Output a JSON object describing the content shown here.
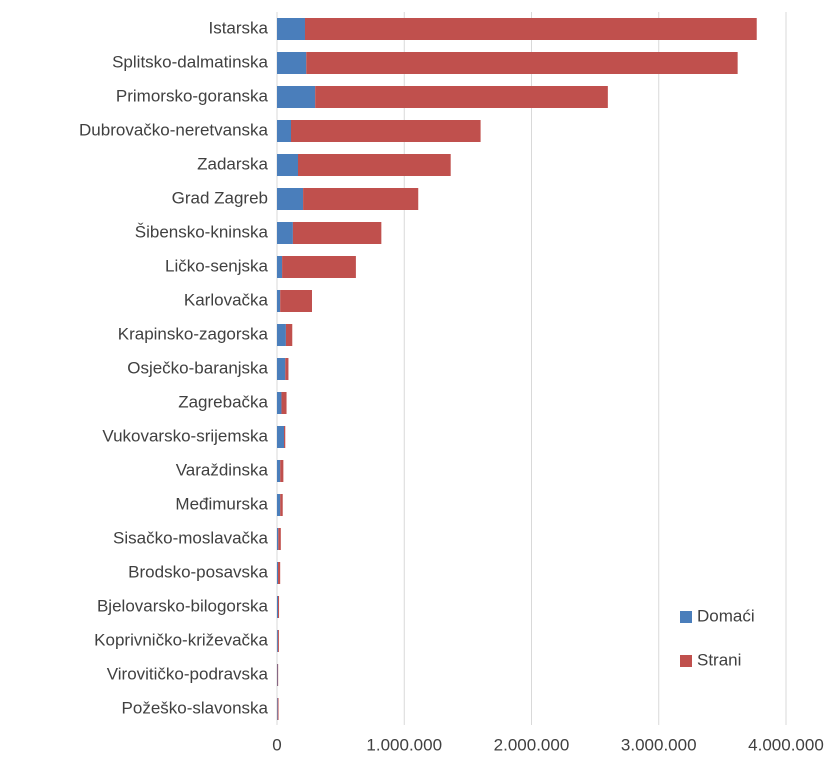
{
  "chart_data": {
    "type": "stacked_barh",
    "categories": [
      "Istarska",
      "Splitsko-dalmatinska",
      "Primorsko-goranska",
      "Dubrovačko-neretvanska",
      "Zadarska",
      "Grad Zagreb",
      "Šibensko-kninska",
      "Ličko-senjska",
      "Karlovačka",
      "Krapinsko-zagorska",
      "Osječko-baranjska",
      "Zagrebačka",
      "Vukovarsko-srijemska",
      "Varaždinska",
      "Međimurska",
      "Sisačko-moslavačka",
      "Brodsko-posavska",
      "Bjelovarsko-bilogorska",
      "Koprivničko-križevačka",
      "Virovitičko-podravska",
      "Požeško-slavonska"
    ],
    "series": [
      {
        "name": "Domaći",
        "color": "#4a7ebb",
        "values": [
          220000,
          230000,
          300000,
          110000,
          165000,
          205000,
          125000,
          40000,
          25000,
          70000,
          65000,
          35000,
          55000,
          25000,
          25000,
          10000,
          8000,
          8000,
          7000,
          4000,
          5000
        ]
      },
      {
        "name": "Strani",
        "color": "#c0504d",
        "values": [
          3550000,
          3390000,
          2300000,
          1490000,
          1200000,
          905000,
          695000,
          580000,
          250000,
          50000,
          25000,
          40000,
          10000,
          25000,
          20000,
          20000,
          17000,
          8000,
          8000,
          5000,
          7000
        ]
      }
    ],
    "xlim": [
      0,
      4000000
    ],
    "xticks": [
      0,
      {
        "value": 1000000,
        "label": "1.000.000"
      },
      {
        "value": 2000000,
        "label": "2.000.000"
      },
      {
        "value": 3000000,
        "label": "3.000.000"
      },
      {
        "value": 4000000,
        "label": "4.000.000"
      }
    ],
    "grid": true,
    "legend": "lower right"
  }
}
